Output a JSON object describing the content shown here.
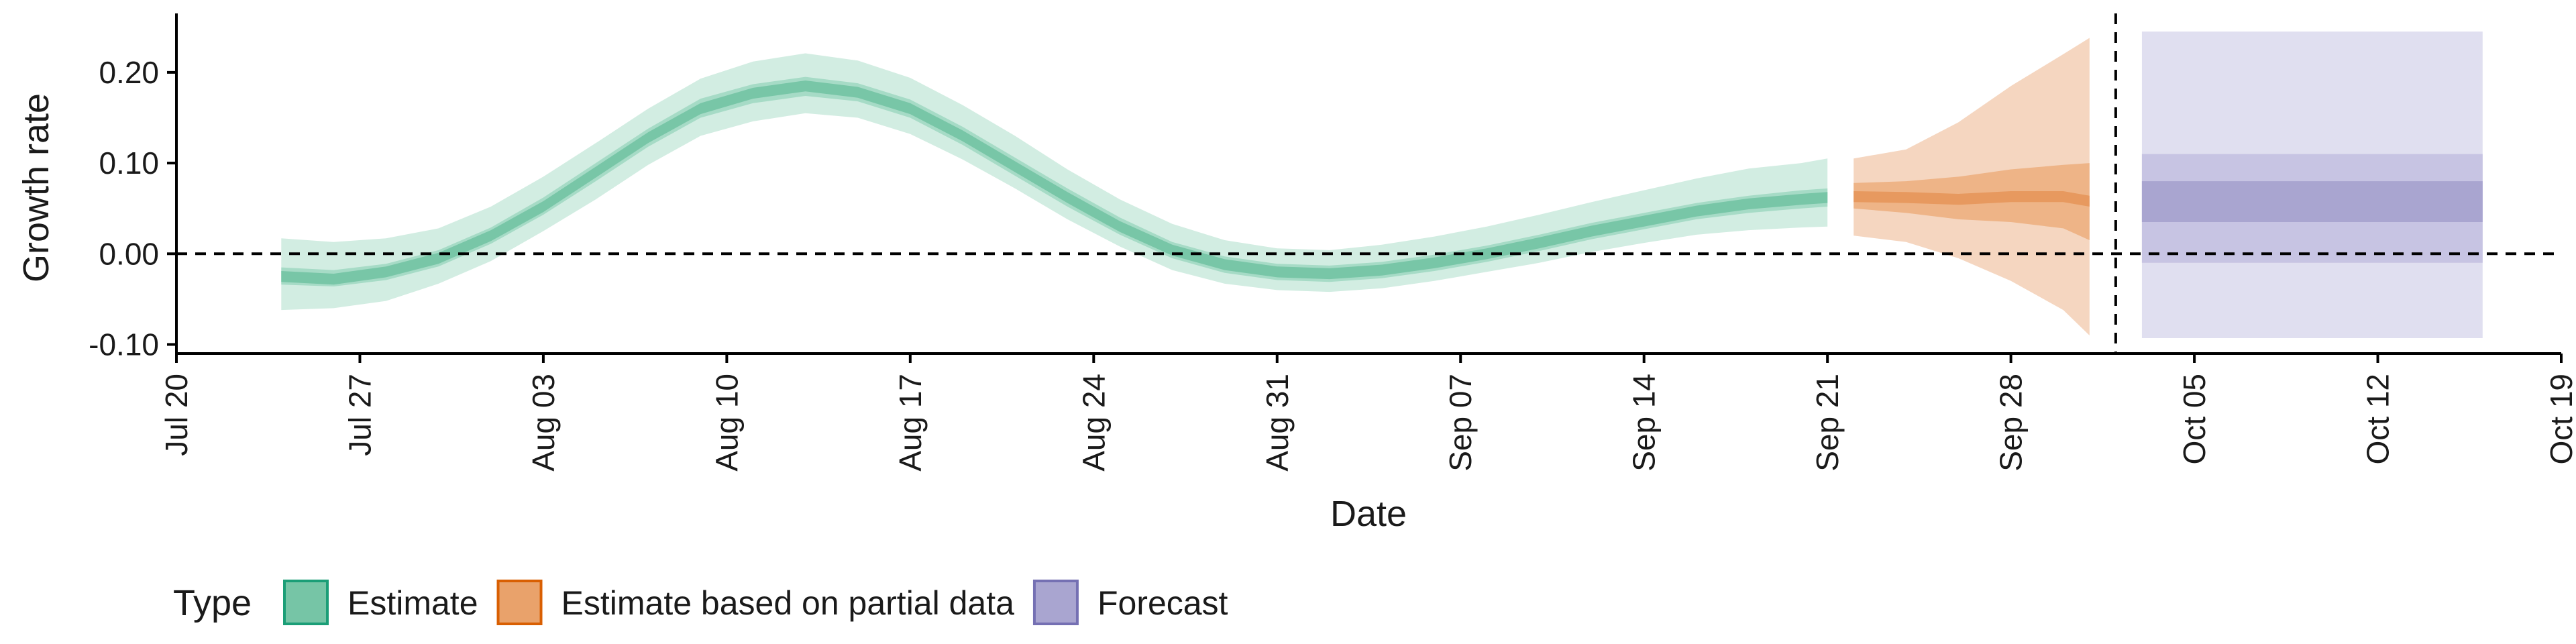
{
  "chart_data": {
    "type": "area",
    "xlabel": "Date",
    "ylabel": "Growth rate",
    "x_axis": {
      "type": "date",
      "range": [
        "2020-07-20",
        "2020-10-19"
      ],
      "ticks": [
        {
          "date": "2020-07-20",
          "label": "Jul 20"
        },
        {
          "date": "2020-07-27",
          "label": "Jul 27"
        },
        {
          "date": "2020-08-03",
          "label": "Aug 03"
        },
        {
          "date": "2020-08-10",
          "label": "Aug 10"
        },
        {
          "date": "2020-08-17",
          "label": "Aug 17"
        },
        {
          "date": "2020-08-24",
          "label": "Aug 24"
        },
        {
          "date": "2020-08-31",
          "label": "Aug 31"
        },
        {
          "date": "2020-09-07",
          "label": "Sep 07"
        },
        {
          "date": "2020-09-14",
          "label": "Sep 14"
        },
        {
          "date": "2020-09-21",
          "label": "Sep 21"
        },
        {
          "date": "2020-09-28",
          "label": "Sep 28"
        },
        {
          "date": "2020-10-05",
          "label": "Oct 05"
        },
        {
          "date": "2020-10-12",
          "label": "Oct 12"
        },
        {
          "date": "2020-10-19",
          "label": "Oct 19"
        }
      ]
    },
    "y_axis": {
      "range": [
        -0.11,
        0.265
      ],
      "ticks": [
        {
          "value": -0.1,
          "label": "-0.10"
        },
        {
          "value": 0.0,
          "label": "0.00"
        },
        {
          "value": 0.1,
          "label": "0.10"
        },
        {
          "value": 0.2,
          "label": "0.20"
        }
      ]
    },
    "grid": false,
    "legend": {
      "title": "Type",
      "position": "bottom-left",
      "entries": [
        {
          "label": "Estimate",
          "fill": "#76c5a6",
          "stroke": "#1b9e77"
        },
        {
          "label": "Estimate based on partial data",
          "fill": "#e9a26b",
          "stroke": "#d95f02"
        },
        {
          "label": "Forecast",
          "fill": "#a9a5d0",
          "stroke": "#7570b3"
        }
      ]
    },
    "reference_lines": [
      {
        "axis": "y",
        "value": 0.0,
        "style": "dashed"
      },
      {
        "axis": "x",
        "value": "2020-10-02",
        "style": "dashed"
      }
    ],
    "series": [
      {
        "name": "Estimate",
        "color": "#1b9e77",
        "points": [
          {
            "x": "2020-07-24",
            "median": -0.025,
            "lower_50": -0.034,
            "upper_50": -0.015,
            "lower_90": -0.062,
            "upper_90": 0.017
          },
          {
            "x": "2020-07-26",
            "median": -0.028,
            "lower_50": -0.036,
            "upper_50": -0.018,
            "lower_90": -0.06,
            "upper_90": 0.013
          },
          {
            "x": "2020-07-28",
            "median": -0.02,
            "lower_50": -0.029,
            "upper_50": -0.011,
            "lower_90": -0.052,
            "upper_90": 0.017
          },
          {
            "x": "2020-07-30",
            "median": -0.005,
            "lower_50": -0.014,
            "upper_50": 0.004,
            "lower_90": -0.033,
            "upper_90": 0.028
          },
          {
            "x": "2020-08-01",
            "median": 0.02,
            "lower_50": 0.011,
            "upper_50": 0.029,
            "lower_90": -0.008,
            "upper_90": 0.052
          },
          {
            "x": "2020-08-03",
            "median": 0.052,
            "lower_50": 0.043,
            "upper_50": 0.062,
            "lower_90": 0.025,
            "upper_90": 0.085
          },
          {
            "x": "2020-08-05",
            "median": 0.09,
            "lower_50": 0.08,
            "upper_50": 0.1,
            "lower_90": 0.06,
            "upper_90": 0.122
          },
          {
            "x": "2020-08-07",
            "median": 0.128,
            "lower_50": 0.118,
            "upper_50": 0.138,
            "lower_90": 0.098,
            "upper_90": 0.16
          },
          {
            "x": "2020-08-09",
            "median": 0.16,
            "lower_50": 0.15,
            "upper_50": 0.171,
            "lower_90": 0.13,
            "upper_90": 0.193
          },
          {
            "x": "2020-08-11",
            "median": 0.177,
            "lower_50": 0.166,
            "upper_50": 0.187,
            "lower_90": 0.146,
            "upper_90": 0.212
          },
          {
            "x": "2020-08-13",
            "median": 0.185,
            "lower_50": 0.174,
            "upper_50": 0.195,
            "lower_90": 0.155,
            "upper_90": 0.221
          },
          {
            "x": "2020-08-15",
            "median": 0.178,
            "lower_50": 0.168,
            "upper_50": 0.188,
            "lower_90": 0.15,
            "upper_90": 0.213
          },
          {
            "x": "2020-08-17",
            "median": 0.16,
            "lower_50": 0.15,
            "upper_50": 0.17,
            "lower_90": 0.132,
            "upper_90": 0.194
          },
          {
            "x": "2020-08-19",
            "median": 0.13,
            "lower_50": 0.12,
            "upper_50": 0.14,
            "lower_90": 0.104,
            "upper_90": 0.164
          },
          {
            "x": "2020-08-21",
            "median": 0.096,
            "lower_50": 0.086,
            "upper_50": 0.106,
            "lower_90": 0.072,
            "upper_90": 0.13
          },
          {
            "x": "2020-08-23",
            "median": 0.062,
            "lower_50": 0.052,
            "upper_50": 0.072,
            "lower_90": 0.038,
            "upper_90": 0.093
          },
          {
            "x": "2020-08-25",
            "median": 0.03,
            "lower_50": 0.021,
            "upper_50": 0.04,
            "lower_90": 0.008,
            "upper_90": 0.06
          },
          {
            "x": "2020-08-27",
            "median": 0.004,
            "lower_50": -0.005,
            "upper_50": 0.013,
            "lower_90": -0.018,
            "upper_90": 0.033
          },
          {
            "x": "2020-08-29",
            "median": -0.012,
            "lower_50": -0.021,
            "upper_50": -0.003,
            "lower_90": -0.033,
            "upper_90": 0.015
          },
          {
            "x": "2020-08-31",
            "median": -0.02,
            "lower_50": -0.029,
            "upper_50": -0.011,
            "lower_90": -0.04,
            "upper_90": 0.006
          },
          {
            "x": "2020-09-02",
            "median": -0.022,
            "lower_50": -0.031,
            "upper_50": -0.013,
            "lower_90": -0.042,
            "upper_90": 0.004
          },
          {
            "x": "2020-09-04",
            "median": -0.018,
            "lower_50": -0.027,
            "upper_50": -0.009,
            "lower_90": -0.038,
            "upper_90": 0.01
          },
          {
            "x": "2020-09-06",
            "median": -0.01,
            "lower_50": -0.019,
            "upper_50": -0.001,
            "lower_90": -0.03,
            "upper_90": 0.019
          },
          {
            "x": "2020-09-08",
            "median": 0.0,
            "lower_50": -0.009,
            "upper_50": 0.009,
            "lower_90": -0.02,
            "upper_90": 0.03
          },
          {
            "x": "2020-09-10",
            "median": 0.012,
            "lower_50": 0.003,
            "upper_50": 0.021,
            "lower_90": -0.01,
            "upper_90": 0.043
          },
          {
            "x": "2020-09-12",
            "median": 0.025,
            "lower_50": 0.016,
            "upper_50": 0.034,
            "lower_90": 0.002,
            "upper_90": 0.057
          },
          {
            "x": "2020-09-14",
            "median": 0.036,
            "lower_50": 0.027,
            "upper_50": 0.045,
            "lower_90": 0.012,
            "upper_90": 0.07
          },
          {
            "x": "2020-09-16",
            "median": 0.047,
            "lower_50": 0.038,
            "upper_50": 0.056,
            "lower_90": 0.021,
            "upper_90": 0.083
          },
          {
            "x": "2020-09-18",
            "median": 0.055,
            "lower_50": 0.045,
            "upper_50": 0.064,
            "lower_90": 0.026,
            "upper_90": 0.094
          },
          {
            "x": "2020-09-20",
            "median": 0.06,
            "lower_50": 0.05,
            "upper_50": 0.07,
            "lower_90": 0.029,
            "upper_90": 0.1
          },
          {
            "x": "2020-09-21",
            "median": 0.062,
            "lower_50": 0.052,
            "upper_50": 0.072,
            "lower_90": 0.03,
            "upper_90": 0.105
          }
        ]
      },
      {
        "name": "Estimate based on partial data",
        "color": "#d95f02",
        "points": [
          {
            "x": "2020-09-22",
            "median": 0.063,
            "lower_50": 0.05,
            "upper_50": 0.078,
            "lower_90": 0.02,
            "upper_90": 0.105
          },
          {
            "x": "2020-09-24",
            "median": 0.062,
            "lower_50": 0.045,
            "upper_50": 0.08,
            "lower_90": 0.013,
            "upper_90": 0.115
          },
          {
            "x": "2020-09-26",
            "median": 0.06,
            "lower_50": 0.038,
            "upper_50": 0.085,
            "lower_90": -0.005,
            "upper_90": 0.145
          },
          {
            "x": "2020-09-28",
            "median": 0.063,
            "lower_50": 0.035,
            "upper_50": 0.093,
            "lower_90": -0.03,
            "upper_90": 0.185
          },
          {
            "x": "2020-09-30",
            "median": 0.063,
            "lower_50": 0.028,
            "upper_50": 0.098,
            "lower_90": -0.062,
            "upper_90": 0.22
          },
          {
            "x": "2020-10-01",
            "median": 0.058,
            "lower_50": 0.015,
            "upper_50": 0.1,
            "lower_90": -0.09,
            "upper_90": 0.238
          }
        ]
      },
      {
        "name": "Forecast",
        "color": "#7570b3",
        "points": [
          {
            "x": "2020-10-03",
            "median": 0.058,
            "lower_50": 0.035,
            "upper_50": 0.08,
            "lower_90": -0.01,
            "upper_90": 0.11,
            "lower_outer": -0.093,
            "upper_outer": 0.245
          },
          {
            "x": "2020-10-16",
            "median": 0.058,
            "lower_50": 0.035,
            "upper_50": 0.08,
            "lower_90": -0.01,
            "upper_90": 0.11,
            "lower_outer": -0.093,
            "upper_outer": 0.245
          }
        ]
      }
    ]
  }
}
